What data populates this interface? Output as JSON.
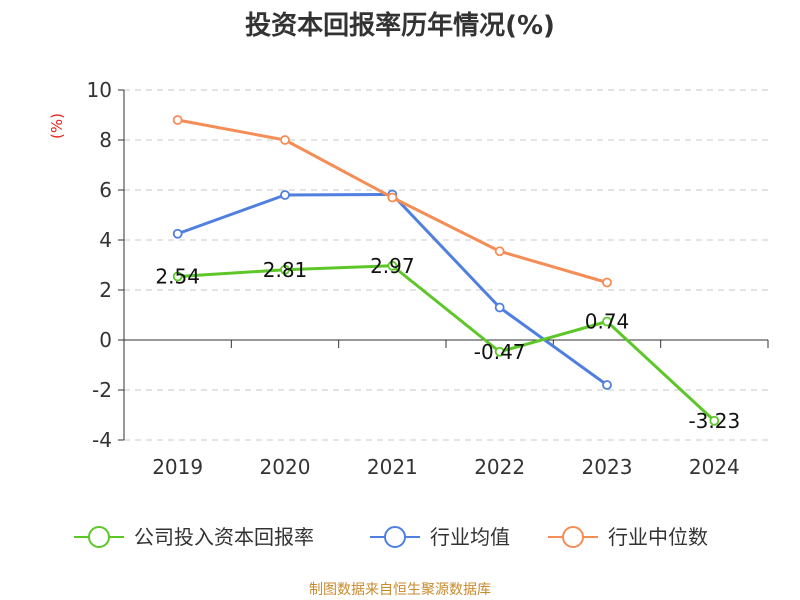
{
  "chart_data": {
    "type": "line",
    "title": "投资本回报率历年情况(%)",
    "ylabel": "(%)",
    "xlabel": "",
    "categories": [
      "2019",
      "2020",
      "2021",
      "2022",
      "2023",
      "2024"
    ],
    "ylim": [
      -4,
      10
    ],
    "yticks": [
      -4,
      -2,
      0,
      2,
      4,
      6,
      8,
      10
    ],
    "ytick_labels": [
      "-4",
      "-2",
      "0",
      "2",
      "4",
      "6",
      "8",
      "10"
    ],
    "grid": true,
    "legend_position": "bottom",
    "series": [
      {
        "name": "公司投入资本回报率",
        "color": "#5cc727",
        "values": [
          2.54,
          2.81,
          2.97,
          -0.47,
          0.74,
          -3.23
        ],
        "labels": [
          "2.54",
          "2.81",
          "2.97",
          "-0.47",
          "0.74",
          "-3.23"
        ]
      },
      {
        "name": "行业均值",
        "color": "#4f7fdf",
        "values": [
          4.25,
          5.8,
          5.82,
          1.3,
          -1.8,
          null
        ]
      },
      {
        "name": "行业中位数",
        "color": "#f58d56",
        "values": [
          8.8,
          8.0,
          5.7,
          3.55,
          2.3,
          null
        ]
      }
    ]
  },
  "source_note": "制图数据来自恒生聚源数据库"
}
